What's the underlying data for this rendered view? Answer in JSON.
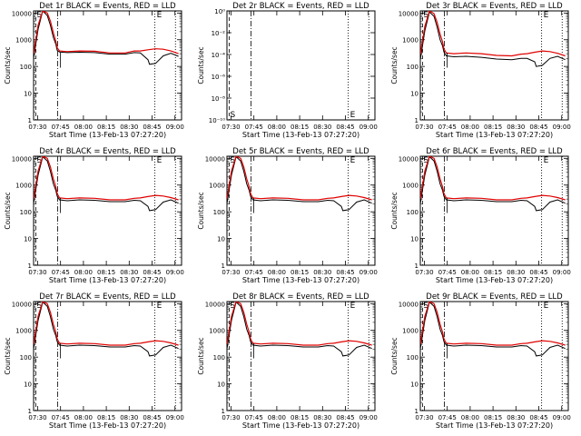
{
  "colors": {
    "events": "#000000",
    "lld": "#e00000",
    "axes": "#000000",
    "marker_line": "#000000"
  },
  "common": {
    "xlabel": "Start Time (13-Feb-13 07:27:20)",
    "ylabel": "Counts/sec",
    "xtick_labels": [
      "07:30",
      "07:45",
      "08:00",
      "08:15",
      "08:30",
      "08:45",
      "09:00"
    ],
    "xtick_minutes": [
      2.67,
      17.67,
      32.67,
      47.67,
      62.67,
      77.67,
      92.67
    ],
    "xlim_minutes": [
      0,
      97
    ],
    "log_ticks_main": [
      "1",
      "10",
      "100",
      "1000",
      "10000"
    ],
    "log_ticks_det2": [
      "10⁰",
      "10⁻²",
      "10⁻⁴",
      "10⁻⁶",
      "10⁻⁸",
      "10⁻¹⁰"
    ],
    "marker_labels": {
      "S": "S",
      "E": "E"
    }
  },
  "chart_data": [
    {
      "type": "line",
      "title": "Det 1r BLACK = Events, RED = LLD",
      "xlabel": "Start Time (13-Feb-13 07:27:20)",
      "ylabel": "Counts/sec",
      "ylim": [
        1,
        12000
      ],
      "yscale": "log",
      "has_data": true,
      "series": [
        {
          "name": "Events",
          "x": [
            0,
            3,
            6,
            9,
            11,
            13,
            14.5,
            15.5,
            17,
            22,
            30,
            40,
            50,
            60,
            66,
            70,
            75,
            76,
            80,
            85,
            90,
            95
          ],
          "y": [
            200,
            2500,
            12000,
            8000,
            3500,
            1200,
            700,
            400,
            350,
            330,
            340,
            330,
            290,
            290,
            330,
            320,
            180,
            120,
            130,
            250,
            310,
            240
          ]
        },
        {
          "name": "LLD",
          "x": [
            0,
            3,
            6,
            9,
            11,
            13,
            14.5,
            15.5,
            17,
            22,
            30,
            40,
            50,
            60,
            66,
            70,
            75,
            80,
            85,
            90,
            95
          ],
          "y": [
            300,
            3500,
            15000,
            10000,
            5000,
            1800,
            900,
            500,
            380,
            360,
            380,
            370,
            320,
            320,
            380,
            380,
            420,
            460,
            440,
            380,
            300
          ]
        }
      ]
    },
    {
      "type": "line",
      "title": "Det 2r BLACK = Events, RED = LLD",
      "xlabel": "Start Time (13-Feb-13 07:27:20)",
      "ylabel": "Counts/sec",
      "ylim": [
        1e-10,
        1
      ],
      "yscale": "log",
      "has_data": false,
      "series": []
    },
    {
      "type": "line",
      "title": "Det 3r BLACK = Events, RED = LLD",
      "xlabel": "Start Time (13-Feb-13 07:27:20)",
      "ylabel": "Counts/sec",
      "ylim": [
        1,
        12000
      ],
      "yscale": "log",
      "has_data": true,
      "series": [
        {
          "name": "Events",
          "x": [
            0,
            3,
            6,
            9,
            11,
            13,
            14.5,
            15.5,
            17,
            22,
            30,
            40,
            50,
            60,
            66,
            70,
            75,
            76,
            80,
            85,
            90,
            95
          ],
          "y": [
            180,
            2200,
            11000,
            7500,
            3000,
            1000,
            600,
            350,
            250,
            230,
            240,
            220,
            190,
            180,
            200,
            200,
            150,
            100,
            110,
            200,
            240,
            180
          ]
        },
        {
          "name": "LLD",
          "x": [
            0,
            3,
            6,
            9,
            11,
            13,
            14.5,
            15.5,
            17,
            22,
            30,
            40,
            50,
            60,
            66,
            70,
            75,
            80,
            85,
            90,
            95
          ],
          "y": [
            280,
            3200,
            14000,
            9500,
            4500,
            1600,
            850,
            450,
            320,
            300,
            320,
            300,
            260,
            250,
            290,
            300,
            340,
            380,
            360,
            310,
            250
          ]
        }
      ]
    },
    {
      "type": "line",
      "title": "Det 4r BLACK = Events, RED = LLD",
      "xlabel": "Start Time (13-Feb-13 07:27:20)",
      "ylabel": "Counts/sec",
      "ylim": [
        1,
        12000
      ],
      "yscale": "log",
      "has_data": true,
      "series": [
        {
          "name": "Events",
          "x": [
            0,
            3,
            6,
            9,
            11,
            13,
            14.5,
            15.5,
            17,
            22,
            30,
            40,
            50,
            60,
            66,
            70,
            75,
            76,
            80,
            85,
            90,
            95
          ],
          "y": [
            200,
            2400,
            11500,
            8000,
            3300,
            1100,
            650,
            380,
            280,
            260,
            280,
            270,
            240,
            240,
            270,
            260,
            160,
            110,
            120,
            230,
            280,
            210
          ]
        },
        {
          "name": "LLD",
          "x": [
            0,
            3,
            6,
            9,
            11,
            13,
            14.5,
            15.5,
            17,
            22,
            30,
            40,
            50,
            60,
            66,
            70,
            75,
            80,
            85,
            90,
            95
          ],
          "y": [
            300,
            3400,
            14500,
            10000,
            4800,
            1700,
            880,
            480,
            330,
            310,
            330,
            320,
            280,
            280,
            320,
            330,
            370,
            410,
            390,
            340,
            280
          ]
        }
      ]
    },
    {
      "type": "line",
      "title": "Det 5r BLACK = Events, RED = LLD",
      "xlabel": "Start Time (13-Feb-13 07:27:20)",
      "ylabel": "Counts/sec",
      "ylim": [
        1,
        12000
      ],
      "yscale": "log",
      "has_data": true,
      "series": [
        {
          "name": "Events",
          "x": [
            0,
            3,
            6,
            9,
            11,
            13,
            14.5,
            15.5,
            17,
            22,
            30,
            40,
            50,
            60,
            66,
            70,
            75,
            76,
            80,
            85,
            90,
            95
          ],
          "y": [
            200,
            2400,
            11500,
            8000,
            3300,
            1100,
            650,
            380,
            280,
            260,
            280,
            270,
            240,
            240,
            270,
            260,
            160,
            110,
            120,
            230,
            280,
            210
          ]
        },
        {
          "name": "LLD",
          "x": [
            0,
            3,
            6,
            9,
            11,
            13,
            14.5,
            15.5,
            17,
            22,
            30,
            40,
            50,
            60,
            66,
            70,
            75,
            80,
            85,
            90,
            95
          ],
          "y": [
            300,
            3400,
            14500,
            10000,
            4800,
            1700,
            880,
            480,
            330,
            310,
            330,
            320,
            280,
            280,
            320,
            330,
            370,
            410,
            390,
            340,
            280
          ]
        }
      ]
    },
    {
      "type": "line",
      "title": "Det 6r BLACK = Events, RED = LLD",
      "xlabel": "Start Time (13-Feb-13 07:27:20)",
      "ylabel": "Counts/sec",
      "ylim": [
        1,
        12000
      ],
      "yscale": "log",
      "has_data": true,
      "series": [
        {
          "name": "Events",
          "x": [
            0,
            3,
            6,
            9,
            11,
            13,
            14.5,
            15.5,
            17,
            22,
            30,
            40,
            50,
            60,
            66,
            70,
            75,
            76,
            80,
            85,
            90,
            95
          ],
          "y": [
            200,
            2400,
            11500,
            8000,
            3300,
            1100,
            650,
            380,
            280,
            260,
            280,
            270,
            240,
            240,
            270,
            260,
            160,
            110,
            120,
            230,
            280,
            210
          ]
        },
        {
          "name": "LLD",
          "x": [
            0,
            3,
            6,
            9,
            11,
            13,
            14.5,
            15.5,
            17,
            22,
            30,
            40,
            50,
            60,
            66,
            70,
            75,
            80,
            85,
            90,
            95
          ],
          "y": [
            300,
            3400,
            14500,
            10000,
            4800,
            1700,
            880,
            480,
            330,
            310,
            330,
            320,
            280,
            280,
            320,
            330,
            370,
            410,
            390,
            340,
            280
          ]
        }
      ]
    },
    {
      "type": "line",
      "title": "Det 7r BLACK = Events, RED = LLD",
      "xlabel": "Start Time (13-Feb-13 07:27:20)",
      "ylabel": "Counts/sec",
      "ylim": [
        1,
        12000
      ],
      "yscale": "log",
      "has_data": true,
      "series": [
        {
          "name": "Events",
          "x": [
            0,
            3,
            6,
            9,
            11,
            13,
            14.5,
            15.5,
            17,
            22,
            30,
            40,
            50,
            60,
            66,
            70,
            75,
            76,
            80,
            85,
            90,
            95
          ],
          "y": [
            200,
            2400,
            11500,
            8000,
            3300,
            1100,
            650,
            380,
            280,
            260,
            280,
            270,
            240,
            240,
            270,
            260,
            160,
            110,
            120,
            230,
            280,
            210
          ]
        },
        {
          "name": "LLD",
          "x": [
            0,
            3,
            6,
            9,
            11,
            13,
            14.5,
            15.5,
            17,
            22,
            30,
            40,
            50,
            60,
            66,
            70,
            75,
            80,
            85,
            90,
            95
          ],
          "y": [
            300,
            3400,
            14500,
            10000,
            4800,
            1700,
            880,
            480,
            330,
            310,
            330,
            320,
            280,
            280,
            320,
            330,
            370,
            410,
            390,
            340,
            280
          ]
        }
      ]
    },
    {
      "type": "line",
      "title": "Det 8r BLACK = Events, RED = LLD",
      "xlabel": "Start Time (13-Feb-13 07:27:20)",
      "ylabel": "Counts/sec",
      "ylim": [
        1,
        12000
      ],
      "yscale": "log",
      "has_data": true,
      "series": [
        {
          "name": "Events",
          "x": [
            0,
            3,
            6,
            9,
            11,
            13,
            14.5,
            15.5,
            17,
            22,
            30,
            40,
            50,
            60,
            66,
            70,
            75,
            76,
            80,
            85,
            90,
            95
          ],
          "y": [
            200,
            2400,
            11500,
            8000,
            3300,
            1100,
            650,
            380,
            280,
            260,
            280,
            270,
            240,
            240,
            270,
            260,
            160,
            110,
            120,
            230,
            280,
            210
          ]
        },
        {
          "name": "LLD",
          "x": [
            0,
            3,
            6,
            9,
            11,
            13,
            14.5,
            15.5,
            17,
            22,
            30,
            40,
            50,
            60,
            66,
            70,
            75,
            80,
            85,
            90,
            95
          ],
          "y": [
            300,
            3400,
            14500,
            10000,
            4800,
            1700,
            880,
            480,
            330,
            310,
            330,
            320,
            280,
            280,
            320,
            330,
            370,
            410,
            390,
            340,
            280
          ]
        }
      ]
    },
    {
      "type": "line",
      "title": "Det 9r BLACK = Events, RED = LLD",
      "xlabel": "Start Time (13-Feb-13 07:27:20)",
      "ylabel": "Counts/sec",
      "ylim": [
        1,
        12000
      ],
      "yscale": "log",
      "has_data": true,
      "series": [
        {
          "name": "Events",
          "x": [
            0,
            3,
            6,
            9,
            11,
            13,
            14.5,
            15.5,
            17,
            22,
            30,
            40,
            50,
            60,
            66,
            70,
            75,
            76,
            80,
            85,
            90,
            95
          ],
          "y": [
            200,
            2400,
            11500,
            8000,
            3300,
            1100,
            650,
            380,
            280,
            260,
            280,
            270,
            240,
            240,
            270,
            260,
            160,
            110,
            120,
            230,
            280,
            210
          ]
        },
        {
          "name": "LLD",
          "x": [
            0,
            3,
            6,
            9,
            11,
            13,
            14.5,
            15.5,
            17,
            22,
            30,
            40,
            50,
            60,
            66,
            70,
            75,
            80,
            85,
            90,
            95
          ],
          "y": [
            300,
            3400,
            14500,
            10000,
            4800,
            1700,
            880,
            480,
            330,
            310,
            330,
            320,
            280,
            280,
            320,
            330,
            370,
            410,
            390,
            340,
            280
          ]
        }
      ]
    }
  ]
}
